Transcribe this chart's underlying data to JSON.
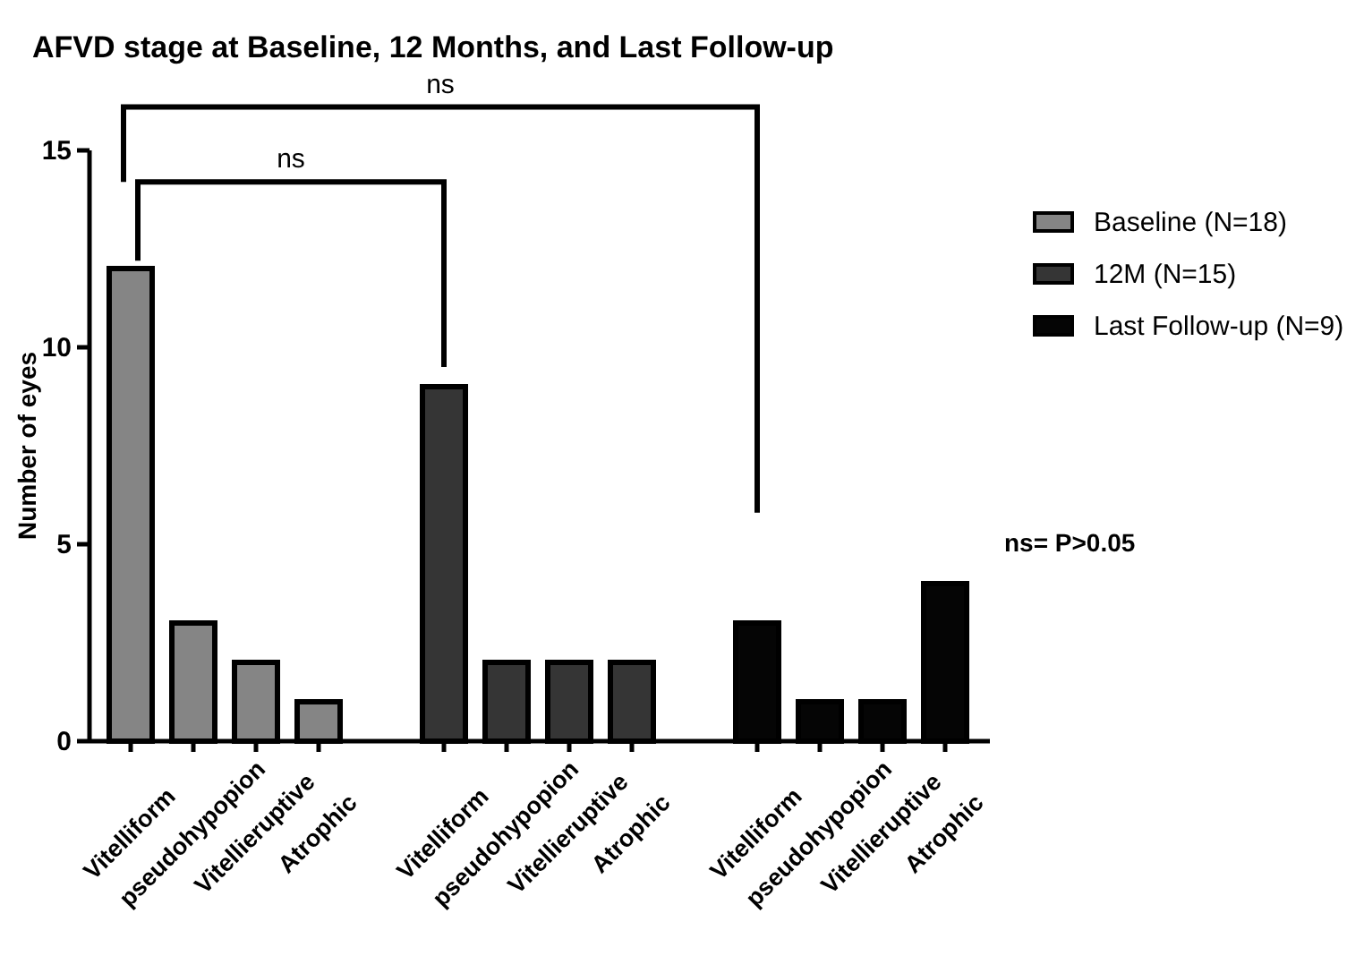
{
  "chart_data": {
    "type": "bar",
    "title": "AFVD stage at Baseline, 12 Months, and Last Follow-up",
    "ylabel": "Number of eyes",
    "categories": [
      "Vitelliform",
      "pseudohypopion",
      "Vitellieruptive",
      "Atrophic",
      null,
      "Vitelliform",
      "pseudohypopion",
      "Vitellieruptive",
      "Atrophic",
      null,
      "Vitelliform",
      "pseudohypopion",
      "Vitellieruptive",
      "Atrophic"
    ],
    "series": [
      {
        "name": "Baseline (N=18)",
        "color": "#858585",
        "values": [
          12,
          3,
          2,
          1,
          null,
          null,
          null,
          null,
          null,
          null,
          null,
          null,
          null,
          null
        ]
      },
      {
        "name": "12M (N=15)",
        "color": "#353535",
        "values": [
          null,
          null,
          null,
          null,
          null,
          9,
          2,
          2,
          2,
          null,
          null,
          null,
          null,
          null
        ]
      },
      {
        "name": "Last Follow-up (N=9)",
        "color": "#050505",
        "values": [
          null,
          null,
          null,
          null,
          null,
          null,
          null,
          null,
          null,
          null,
          3,
          1,
          1,
          4
        ]
      }
    ],
    "ylim": [
      0,
      15
    ],
    "yticks": [
      0,
      5,
      10,
      15
    ],
    "grid": false,
    "legend": "right",
    "annotations": [
      "ns",
      "ns",
      "ns= P>0.05"
    ]
  }
}
